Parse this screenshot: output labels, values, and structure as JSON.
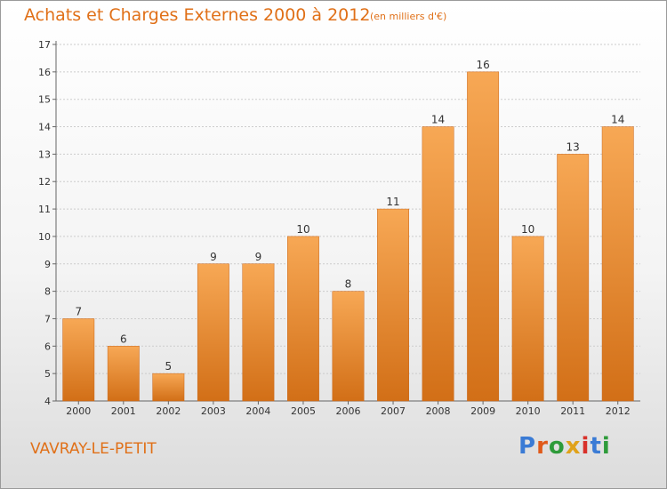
{
  "chart_data": {
    "type": "bar",
    "title": "Achats et Charges Externes 2000 à 2012",
    "subtitle": "(en milliers d'€)",
    "categories": [
      "2000",
      "2001",
      "2002",
      "2003",
      "2004",
      "2005",
      "2006",
      "2007",
      "2008",
      "2009",
      "2010",
      "2011",
      "2012"
    ],
    "values": [
      7,
      6,
      5,
      9,
      9,
      10,
      8,
      11,
      14,
      16,
      10,
      13,
      14
    ],
    "ylim": [
      4,
      17
    ],
    "yticks": [
      4,
      5,
      6,
      7,
      8,
      9,
      10,
      11,
      12,
      13,
      14,
      15,
      16,
      17
    ],
    "grid": true,
    "bar_color_top": "#f7a855",
    "bar_color_bottom": "#d26f17",
    "xlabel": "",
    "ylabel": ""
  },
  "footer": {
    "commune": "VAVRAY-LE-PETIT",
    "logo": "Proxiti"
  },
  "colors": {
    "accent": "#e07018",
    "grid": "#cccccc",
    "logo_letters": [
      "#3a7bd5",
      "#e05a1a",
      "#2e9b3a",
      "#e0a21a",
      "#d8312a",
      "#3a7bd5",
      "#2e9b3a"
    ]
  }
}
